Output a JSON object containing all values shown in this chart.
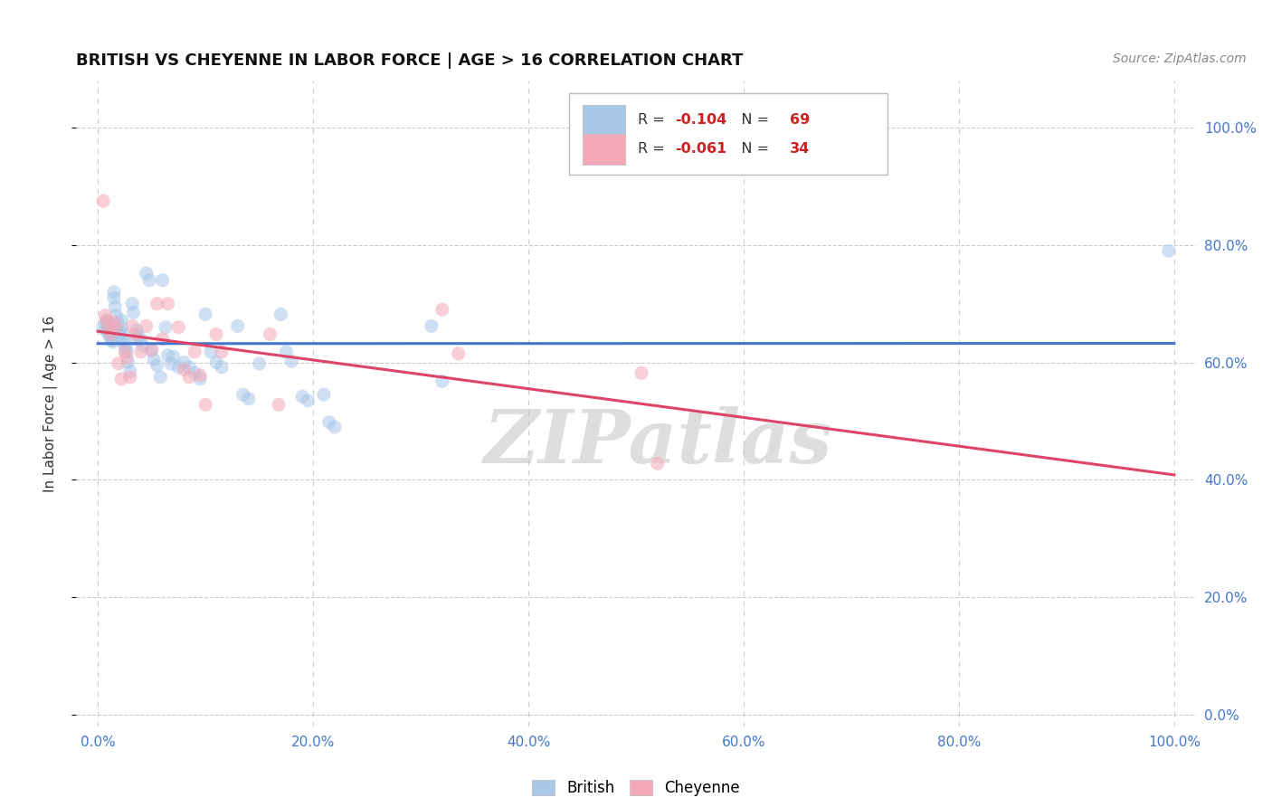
{
  "title": "BRITISH VS CHEYENNE IN LABOR FORCE | AGE > 16 CORRELATION CHART",
  "source": "Source: ZipAtlas.com",
  "ylabel": "In Labor Force | Age > 16",
  "xlim": [
    -0.02,
    1.02
  ],
  "ylim": [
    -0.02,
    1.08
  ],
  "xticks": [
    0.0,
    0.2,
    0.4,
    0.6,
    0.8,
    1.0
  ],
  "yticks": [
    0.0,
    0.2,
    0.4,
    0.6,
    0.8,
    1.0
  ],
  "xtick_labels": [
    "0.0%",
    "20.0%",
    "40.0%",
    "60.0%",
    "80.0%",
    "100.0%"
  ],
  "ytick_labels_right": [
    "0.0%",
    "20.0%",
    "40.0%",
    "60.0%",
    "80.0%",
    "100.0%"
  ],
  "grid_color": "#cccccc",
  "background_color": "#ffffff",
  "british_color": "#a8c8e8",
  "cheyenne_color": "#f4a8b8",
  "british_line_color": "#4477cc",
  "cheyenne_line_color": "#dd4466",
  "british_R": -0.104,
  "british_N": 69,
  "cheyenne_R": -0.061,
  "cheyenne_N": 34,
  "british_x": [
    0.005,
    0.007,
    0.008,
    0.009,
    0.01,
    0.01,
    0.011,
    0.012,
    0.013,
    0.014,
    0.015,
    0.015,
    0.016,
    0.017,
    0.018,
    0.018,
    0.02,
    0.021,
    0.022,
    0.022,
    0.023,
    0.024,
    0.025,
    0.026,
    0.027,
    0.028,
    0.03,
    0.032,
    0.033,
    0.035,
    0.036,
    0.038,
    0.04,
    0.042,
    0.045,
    0.048,
    0.05,
    0.052,
    0.055,
    0.058,
    0.06,
    0.063,
    0.065,
    0.068,
    0.07,
    0.075,
    0.08,
    0.085,
    0.09,
    0.095,
    0.1,
    0.105,
    0.11,
    0.115,
    0.13,
    0.135,
    0.14,
    0.15,
    0.17,
    0.175,
    0.18,
    0.19,
    0.195,
    0.21,
    0.215,
    0.22,
    0.31,
    0.32,
    0.995
  ],
  "british_y": [
    0.66,
    0.655,
    0.67,
    0.665,
    0.66,
    0.65,
    0.645,
    0.64,
    0.638,
    0.635,
    0.72,
    0.71,
    0.695,
    0.68,
    0.67,
    0.655,
    0.648,
    0.64,
    0.672,
    0.66,
    0.65,
    0.638,
    0.63,
    0.625,
    0.618,
    0.6,
    0.585,
    0.7,
    0.685,
    0.64,
    0.655,
    0.645,
    0.638,
    0.628,
    0.752,
    0.74,
    0.62,
    0.605,
    0.595,
    0.575,
    0.74,
    0.66,
    0.612,
    0.598,
    0.61,
    0.592,
    0.6,
    0.592,
    0.582,
    0.572,
    0.682,
    0.618,
    0.6,
    0.592,
    0.662,
    0.545,
    0.538,
    0.598,
    0.682,
    0.618,
    0.602,
    0.542,
    0.535,
    0.545,
    0.498,
    0.49,
    0.662,
    0.568,
    0.79
  ],
  "cheyenne_x": [
    0.005,
    0.007,
    0.008,
    0.01,
    0.012,
    0.015,
    0.017,
    0.019,
    0.022,
    0.025,
    0.027,
    0.03,
    0.032,
    0.035,
    0.04,
    0.045,
    0.05,
    0.055,
    0.06,
    0.065,
    0.075,
    0.08,
    0.085,
    0.09,
    0.095,
    0.1,
    0.11,
    0.115,
    0.16,
    0.168,
    0.32,
    0.335,
    0.505,
    0.52
  ],
  "cheyenne_y": [
    0.875,
    0.68,
    0.672,
    0.658,
    0.648,
    0.668,
    0.66,
    0.598,
    0.572,
    0.618,
    0.608,
    0.575,
    0.662,
    0.648,
    0.618,
    0.662,
    0.622,
    0.7,
    0.64,
    0.7,
    0.66,
    0.588,
    0.575,
    0.618,
    0.578,
    0.528,
    0.648,
    0.618,
    0.648,
    0.528,
    0.69,
    0.615,
    0.582,
    0.428
  ],
  "watermark": "ZIPatlas",
  "watermark_color": "#c8c8c8",
  "marker_size": 120,
  "alpha": 0.55,
  "line_width": 2.2,
  "tick_color": "#4477cc",
  "tick_fontsize": 11,
  "ylabel_fontsize": 11,
  "title_fontsize": 13,
  "source_fontsize": 10
}
